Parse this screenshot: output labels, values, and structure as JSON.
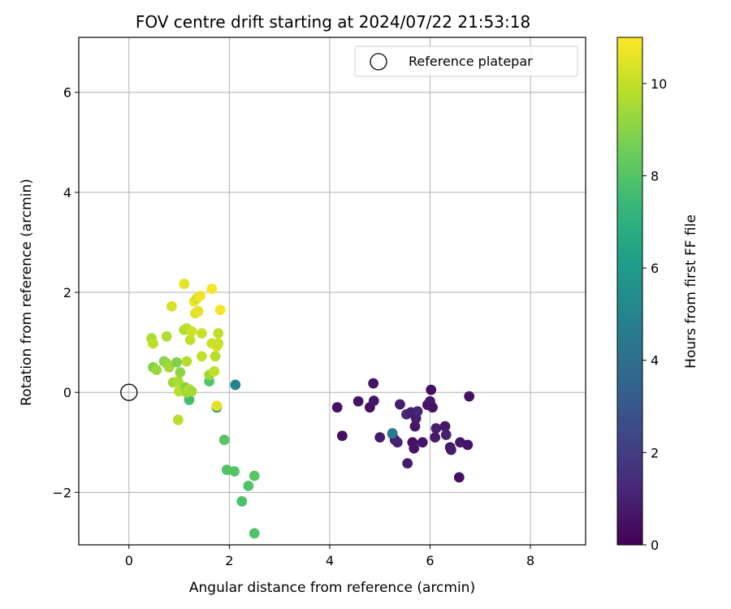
{
  "chart_data": {
    "type": "scatter",
    "title": "FOV centre drift starting at 2024/07/22 21:53:18",
    "xlabel": "Angular distance from reference (arcmin)",
    "ylabel": "Rotation from reference (arcmin)",
    "xlim": [
      -1.0,
      9.1
    ],
    "ylim": [
      -3.05,
      7.1
    ],
    "xticks": [
      0,
      2,
      4,
      6,
      8
    ],
    "yticks": [
      -2,
      0,
      2,
      4,
      6
    ],
    "xtick_labels": [
      "0",
      "2",
      "4",
      "6",
      "8"
    ],
    "ytick_labels": [
      "−2",
      "0",
      "2",
      "4",
      "6"
    ],
    "grid": true,
    "legend": {
      "position": "upper right",
      "label": "Reference platepar",
      "marker": "hollow-circle",
      "point": {
        "x": 0,
        "y": 0
      }
    },
    "colorbar": {
      "label": "Hours from first FF file",
      "range": [
        0,
        11
      ],
      "ticks": [
        0,
        2,
        4,
        6,
        8,
        10
      ],
      "tick_labels": [
        "0",
        "2",
        "4",
        "6",
        "8",
        "10"
      ],
      "colormap": "viridis"
    },
    "colormap_stops": [
      "#440154",
      "#482878",
      "#3e4989",
      "#31688e",
      "#26828e",
      "#1f9e89",
      "#35b779",
      "#6ece58",
      "#b5de2b",
      "#fde725"
    ],
    "points": [
      {
        "x": 4.15,
        "y": -0.3,
        "h": 0.5
      },
      {
        "x": 4.25,
        "y": -0.87,
        "h": 0.4
      },
      {
        "x": 4.57,
        "y": -0.18,
        "h": 0.6
      },
      {
        "x": 4.8,
        "y": -0.3,
        "h": 0.5
      },
      {
        "x": 4.87,
        "y": 0.18,
        "h": 0.6
      },
      {
        "x": 4.88,
        "y": -0.17,
        "h": 0.7
      },
      {
        "x": 5.0,
        "y": -0.9,
        "h": 0.8
      },
      {
        "x": 5.25,
        "y": -0.83,
        "h": 0.9
      },
      {
        "x": 5.3,
        "y": -0.95,
        "h": 1.0
      },
      {
        "x": 5.35,
        "y": -1.0,
        "h": 1.1
      },
      {
        "x": 5.4,
        "y": -0.24,
        "h": 0.9
      },
      {
        "x": 5.53,
        "y": -0.44,
        "h": 1.3
      },
      {
        "x": 5.55,
        "y": -1.42,
        "h": 0.8
      },
      {
        "x": 5.62,
        "y": -0.4,
        "h": 1.0
      },
      {
        "x": 5.65,
        "y": -1.0,
        "h": 0.5
      },
      {
        "x": 5.68,
        "y": -1.12,
        "h": 0.6
      },
      {
        "x": 5.7,
        "y": -0.68,
        "h": 0.7
      },
      {
        "x": 5.72,
        "y": -0.52,
        "h": 0.9
      },
      {
        "x": 5.75,
        "y": -0.38,
        "h": 1.1
      },
      {
        "x": 5.85,
        "y": -1.0,
        "h": 0.6
      },
      {
        "x": 5.95,
        "y": -0.25,
        "h": 0.5
      },
      {
        "x": 6.0,
        "y": -0.18,
        "h": 0.7
      },
      {
        "x": 6.02,
        "y": 0.05,
        "h": 0.4
      },
      {
        "x": 6.05,
        "y": -0.3,
        "h": 0.6
      },
      {
        "x": 6.1,
        "y": -0.9,
        "h": 0.8
      },
      {
        "x": 6.12,
        "y": -0.72,
        "h": 0.9
      },
      {
        "x": 6.3,
        "y": -0.68,
        "h": 0.7
      },
      {
        "x": 6.32,
        "y": -0.85,
        "h": 1.0
      },
      {
        "x": 6.4,
        "y": -1.1,
        "h": 0.6
      },
      {
        "x": 6.42,
        "y": -1.15,
        "h": 0.8
      },
      {
        "x": 6.58,
        "y": -1.7,
        "h": 0.5
      },
      {
        "x": 6.6,
        "y": -1.0,
        "h": 0.7
      },
      {
        "x": 6.75,
        "y": -1.05,
        "h": 0.6
      },
      {
        "x": 6.78,
        "y": -0.08,
        "h": 0.5
      },
      {
        "x": 5.25,
        "y": -0.82,
        "h": 4.5
      },
      {
        "x": 2.12,
        "y": 0.15,
        "h": 5.0
      },
      {
        "x": 1.75,
        "y": -0.3,
        "h": 5.2
      },
      {
        "x": 1.2,
        "y": -0.15,
        "h": 7.7
      },
      {
        "x": 1.6,
        "y": 0.22,
        "h": 8.0
      },
      {
        "x": 1.9,
        "y": -0.95,
        "h": 8.1
      },
      {
        "x": 1.95,
        "y": -1.55,
        "h": 7.9
      },
      {
        "x": 2.1,
        "y": -1.58,
        "h": 8.0
      },
      {
        "x": 2.25,
        "y": -2.18,
        "h": 7.8
      },
      {
        "x": 2.38,
        "y": -1.87,
        "h": 7.9
      },
      {
        "x": 2.5,
        "y": -1.67,
        "h": 8.1
      },
      {
        "x": 2.5,
        "y": -2.82,
        "h": 7.9
      },
      {
        "x": 0.48,
        "y": 0.5,
        "h": 8.9
      },
      {
        "x": 0.55,
        "y": 0.45,
        "h": 9.3
      },
      {
        "x": 0.7,
        "y": 0.62,
        "h": 9.0
      },
      {
        "x": 0.75,
        "y": 0.58,
        "h": 9.2
      },
      {
        "x": 0.8,
        "y": 0.5,
        "h": 9.5
      },
      {
        "x": 0.88,
        "y": 0.2,
        "h": 9.4
      },
      {
        "x": 0.95,
        "y": 0.6,
        "h": 8.8
      },
      {
        "x": 0.98,
        "y": 0.22,
        "h": 9.6
      },
      {
        "x": 1.0,
        "y": 0.02,
        "h": 9.8
      },
      {
        "x": 1.02,
        "y": 0.4,
        "h": 9.1
      },
      {
        "x": 1.05,
        "y": 0.05,
        "h": 9.9
      },
      {
        "x": 1.12,
        "y": 0.1,
        "h": 9.0
      },
      {
        "x": 1.15,
        "y": 0.0,
        "h": 9.4
      },
      {
        "x": 1.2,
        "y": 0.06,
        "h": 9.7
      },
      {
        "x": 1.25,
        "y": 0.02,
        "h": 9.5
      },
      {
        "x": 0.98,
        "y": -0.55,
        "h": 9.8
      },
      {
        "x": 0.45,
        "y": 1.08,
        "h": 9.6
      },
      {
        "x": 0.48,
        "y": 0.98,
        "h": 9.9
      },
      {
        "x": 0.75,
        "y": 1.12,
        "h": 9.7
      },
      {
        "x": 0.85,
        "y": 1.72,
        "h": 10.3
      },
      {
        "x": 1.1,
        "y": 1.25,
        "h": 9.6
      },
      {
        "x": 1.1,
        "y": 2.17,
        "h": 10.6
      },
      {
        "x": 1.15,
        "y": 1.28,
        "h": 9.9
      },
      {
        "x": 1.15,
        "y": 0.62,
        "h": 9.8
      },
      {
        "x": 1.22,
        "y": 1.05,
        "h": 10.0
      },
      {
        "x": 1.25,
        "y": 1.22,
        "h": 10.2
      },
      {
        "x": 1.3,
        "y": 1.82,
        "h": 10.7
      },
      {
        "x": 1.32,
        "y": 1.58,
        "h": 10.5
      },
      {
        "x": 1.35,
        "y": 1.88,
        "h": 10.4
      },
      {
        "x": 1.38,
        "y": 1.62,
        "h": 10.6
      },
      {
        "x": 1.42,
        "y": 1.93,
        "h": 10.8
      },
      {
        "x": 1.45,
        "y": 0.72,
        "h": 10.0
      },
      {
        "x": 1.45,
        "y": 1.18,
        "h": 10.1
      },
      {
        "x": 1.6,
        "y": 0.35,
        "h": 9.4
      },
      {
        "x": 1.65,
        "y": 2.07,
        "h": 10.9
      },
      {
        "x": 1.65,
        "y": 0.98,
        "h": 10.2
      },
      {
        "x": 1.7,
        "y": 0.42,
        "h": 10.0
      },
      {
        "x": 1.72,
        "y": 0.72,
        "h": 9.8
      },
      {
        "x": 1.75,
        "y": -0.27,
        "h": 10.5
      },
      {
        "x": 1.75,
        "y": 0.92,
        "h": 10.3
      },
      {
        "x": 1.78,
        "y": 0.98,
        "h": 10.1
      },
      {
        "x": 1.78,
        "y": 1.18,
        "h": 9.9
      },
      {
        "x": 1.82,
        "y": 1.65,
        "h": 10.8
      }
    ]
  }
}
